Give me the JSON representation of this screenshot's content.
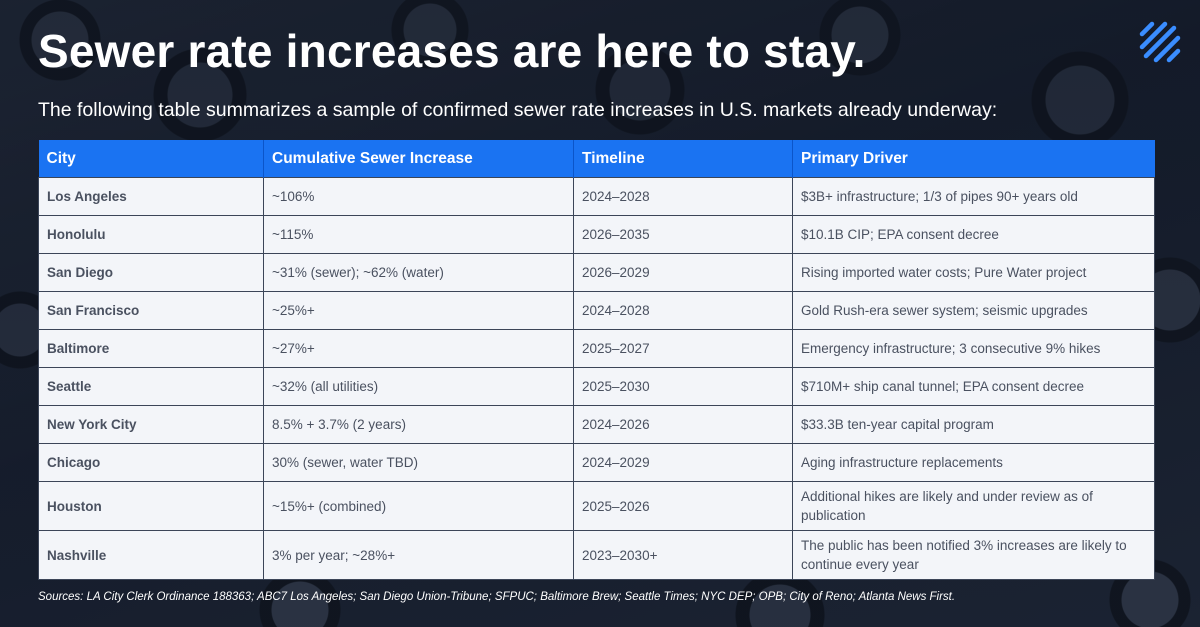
{
  "title": "Sewer rate increases are here to stay.",
  "subtitle": "The following table summarizes a sample of confirmed sewer rate increases in U.S. markets already underway:",
  "table": {
    "headers": [
      "City",
      "Cumulative Sewer Increase",
      "Timeline",
      "Primary Driver"
    ],
    "rows": [
      [
        "Los Angeles",
        "~106%",
        "2024–2028",
        "$3B+ infrastructure; 1/3 of pipes 90+ years old"
      ],
      [
        "Honolulu",
        "~115%",
        "2026–2035",
        "$10.1B CIP; EPA consent decree"
      ],
      [
        "San Diego",
        "~31% (sewer); ~62% (water)",
        "2026–2029",
        "Rising imported water costs; Pure Water project"
      ],
      [
        "San Francisco",
        "~25%+",
        "2024–2028",
        "Gold Rush-era sewer system; seismic upgrades"
      ],
      [
        "Baltimore",
        "~27%+",
        "2025–2027",
        "Emergency infrastructure; 3 consecutive 9% hikes"
      ],
      [
        "Seattle",
        "~32% (all utilities)",
        "2025–2030",
        "$710M+ ship canal tunnel; EPA consent decree"
      ],
      [
        "New York City",
        "8.5% + 3.7% (2 years)",
        "2024–2026",
        "$33.3B ten-year capital program"
      ],
      [
        "Chicago",
        "30% (sewer, water TBD)",
        "2024–2029",
        "Aging infrastructure replacements"
      ],
      [
        "Houston",
        "~15%+ (combined)",
        "2025–2026",
        "Additional hikes are likely and under review as of publication"
      ],
      [
        "Nashville",
        "3% per year; ~28%+",
        "2023–2030+",
        "The public has been notified 3% increases are likely to continue every year"
      ]
    ]
  },
  "sources": "Sources: LA City Clerk Ordinance 188363; ABC7 Los Angeles; San Diego Union-Tribune; SFPUC; Baltimore Brew; Seattle Times; NYC DEP; OPB; City of Reno; Atlanta News First.",
  "colors": {
    "header_bg": "#1a73f2",
    "row_bg": "#f3f5f9",
    "accent": "#2f8cff"
  },
  "icons": {
    "logo": "brand-slash-logo-icon"
  }
}
